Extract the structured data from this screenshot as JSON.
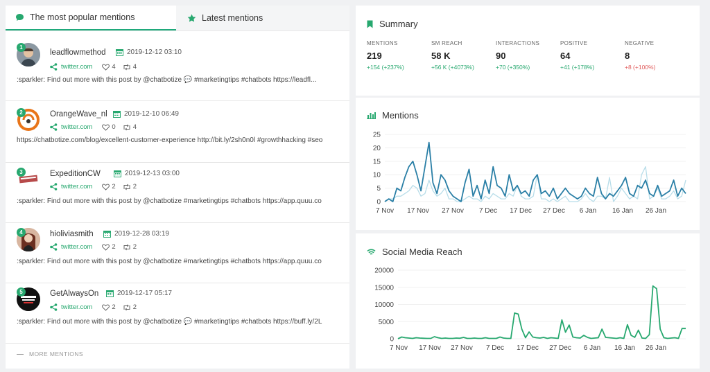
{
  "tabs": {
    "popular": "The most popular mentions",
    "latest": "Latest mentions"
  },
  "mentions": [
    {
      "rank": "1",
      "user": "leadflowmethod",
      "date": "2019-12-12 03:10",
      "source": "twitter.com",
      "likes": "4",
      "shares": "4",
      "text": ":sparkler: Find out more with this post by @chatbotize 💬 #marketingtips #chatbots https://leadfl..."
    },
    {
      "rank": "2",
      "user": "OrangeWave_nl",
      "date": "2019-12-10 06:49",
      "source": "twitter.com",
      "likes": "0",
      "shares": "4",
      "text": "https://chatbotize.com/blog/excellent-customer-experience http://bit.ly/2sh0n0l #growthhacking #seo"
    },
    {
      "rank": "3",
      "user": "ExpeditionCW",
      "date": "2019-12-13 03:00",
      "source": "twitter.com",
      "likes": "2",
      "shares": "2",
      "text": ":sparkler: Find out more with this post by @chatbotize #marketingtips #chatbots https://app.quuu.co"
    },
    {
      "rank": "4",
      "user": "hioliviasmith",
      "date": "2019-12-28 03:19",
      "source": "twitter.com",
      "likes": "2",
      "shares": "2",
      "text": ":sparkler: Find out more with this post by @chatbotize #marketingtips #chatbots https://app.quuu.co"
    },
    {
      "rank": "5",
      "user": "GetAlwaysOn",
      "date": "2019-12-17 05:17",
      "source": "twitter.com",
      "likes": "2",
      "shares": "2",
      "text": ":sparkler: Find out more with this post by @chatbotize 💬 #marketingtips #chatbots https://buff.ly/2L"
    }
  ],
  "more_mentions": "MORE MENTIONS",
  "summary": {
    "title": "Summary",
    "stats": [
      {
        "label": "MENTIONS",
        "value": "219",
        "change": "+154 (+237%)",
        "dir": "up"
      },
      {
        "label": "SM REACH",
        "value": "58 K",
        "change": "+56 K (+4073%)",
        "dir": "up"
      },
      {
        "label": "INTERACTIONS",
        "value": "90",
        "change": "+70 (+350%)",
        "dir": "up"
      },
      {
        "label": "POSITIVE",
        "value": "64",
        "change": "+41 (+178%)",
        "dir": "up"
      },
      {
        "label": "NEGATIVE",
        "value": "8",
        "change": "+8 (+100%)",
        "dir": "down"
      }
    ]
  },
  "colors": {
    "accent": "#27a86f",
    "line": "#2a7fa6",
    "line_light": "#b8dde9",
    "reach": "#27a86f"
  },
  "chart_data": [
    {
      "type": "line",
      "title": "Mentions",
      "xlabel": "",
      "ylabel": "",
      "ylim": [
        0,
        25
      ],
      "yticks": [
        0,
        5,
        10,
        15,
        20,
        25
      ],
      "xticks": [
        "7 Nov",
        "17 Nov",
        "27 Nov",
        "7 Dec",
        "17 Dec",
        "27 Dec",
        "6 Jan",
        "16 Jan",
        "26 Jan"
      ],
      "x_start": "2019-11-07",
      "series": [
        {
          "values": [
            0,
            1,
            0,
            5,
            4,
            9,
            13,
            15,
            10,
            4,
            13,
            22,
            7,
            3,
            10,
            8,
            4,
            2,
            1,
            0,
            7,
            12,
            2,
            6,
            1,
            8,
            3,
            13,
            6,
            5,
            2,
            10,
            4,
            6,
            3,
            4,
            2,
            8,
            10,
            3,
            4,
            2,
            5,
            1,
            3,
            5,
            3,
            2,
            1,
            2,
            5,
            3,
            2,
            9,
            3,
            1,
            3,
            2,
            4,
            6,
            9,
            3,
            2,
            6,
            5,
            8,
            3,
            2,
            6,
            2,
            3,
            4,
            8,
            2,
            5,
            3
          ]
        },
        {
          "values": [
            0,
            1,
            1,
            2,
            2,
            3,
            4,
            6,
            5,
            2,
            3,
            8,
            4,
            2,
            3,
            5,
            1,
            1,
            0,
            0,
            1,
            2,
            1,
            1,
            0,
            2,
            1,
            3,
            2,
            1,
            1,
            3,
            2,
            6,
            2,
            1,
            1,
            2,
            10,
            1,
            1,
            0,
            1,
            0,
            1,
            2,
            0,
            0,
            0,
            1,
            3,
            1,
            0,
            2,
            2,
            1,
            9,
            0,
            2,
            5,
            3,
            1,
            2,
            1,
            10,
            13,
            1,
            2,
            5,
            1,
            1,
            2,
            4,
            1,
            2,
            8
          ]
        }
      ]
    },
    {
      "type": "line",
      "title": "Social Media Reach",
      "xlabel": "",
      "ylabel": "",
      "ylim": [
        0,
        20000
      ],
      "yticks": [
        0,
        5000,
        10000,
        15000,
        20000
      ],
      "xticks": [
        "7 Nov",
        "17 Nov",
        "27 Nov",
        "7 Dec",
        "17 Dec",
        "27 Dec",
        "6 Jan",
        "16 Jan",
        "26 Jan"
      ],
      "series": [
        {
          "values": [
            0,
            500,
            300,
            200,
            100,
            300,
            200,
            150,
            100,
            100,
            600,
            300,
            100,
            200,
            100,
            100,
            200,
            150,
            400,
            100,
            100,
            200,
            100,
            100,
            300,
            100,
            100,
            100,
            500,
            200,
            100,
            100,
            7500,
            7200,
            2800,
            300,
            2000,
            500,
            300,
            200,
            400,
            100,
            300,
            200,
            100,
            5500,
            1900,
            4000,
            500,
            300,
            200,
            1000,
            400,
            100,
            200,
            300,
            2800,
            400,
            300,
            200,
            100,
            300,
            100,
            4100,
            1000,
            400,
            2500,
            200,
            100,
            1200,
            15400,
            14600,
            2800,
            300,
            100,
            200,
            300,
            100,
            3000,
            3000
          ]
        }
      ]
    }
  ]
}
